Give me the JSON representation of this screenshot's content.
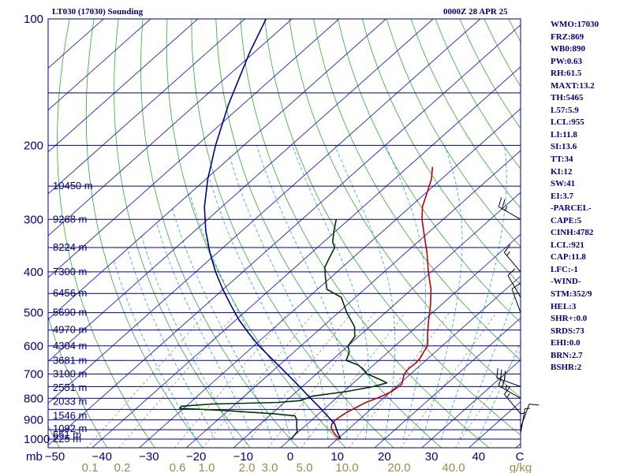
{
  "header": {
    "station": "LT030 (17030) Sounding",
    "time": "0000Z 28 APR 25"
  },
  "indices": [
    "WMO:17030",
    "FRZ:869",
    "WB0:890",
    "PW:0.63",
    "RH:61.5",
    "MAXT:13.2",
    "TH:5465",
    "L57:5.9",
    "LCL:955",
    "LI:11.8",
    "SI:13.6",
    "TT:34",
    "KI:12",
    "SW:41",
    "EI:3.7",
    "-PARCEL-",
    "CAPE:5",
    "CINH:4782",
    "LCL:921",
    "CAP:11.8",
    "LFC:-1",
    "-WIND-",
    "STM:352/9",
    "HEL:3",
    "SHR+:0.0",
    "SRDS:73",
    "EHI:0.0",
    "BRN:2.7",
    "BSHR:2"
  ],
  "chart_data": {
    "type": "skew-t log-p sounding",
    "y_axis": {
      "label": "mb",
      "scale": "log",
      "range": [
        1000,
        100
      ],
      "ticks": [
        100,
        200,
        300,
        400,
        500,
        600,
        700,
        800,
        900,
        1000
      ]
    },
    "x_axis": {
      "label": "temperature (°C)",
      "ticks": [
        -50,
        -40,
        -30,
        -20,
        -10,
        0,
        10,
        20,
        30,
        40
      ]
    },
    "mixing_ratio_axis": {
      "label": "g/kg",
      "ticks": [
        0.1,
        0.2,
        0.6,
        1.0,
        2.0,
        3.0,
        5.0,
        10.0,
        20.0,
        40.0
      ]
    },
    "height_labels": [
      {
        "p": 1000,
        "text": "225 m"
      },
      {
        "p": 977,
        "text": "651 m"
      },
      {
        "p": 945,
        "text": "1092 m"
      },
      {
        "p": 880,
        "text": "1546 m"
      },
      {
        "p": 815,
        "text": "2033 m"
      },
      {
        "p": 755,
        "text": "2551 m"
      },
      {
        "p": 700,
        "text": "3100 m"
      },
      {
        "p": 650,
        "text": "3681 m"
      },
      {
        "p": 600,
        "text": "4304 m"
      },
      {
        "p": 550,
        "text": "4970 m"
      },
      {
        "p": 500,
        "text": "5690 m"
      },
      {
        "p": 450,
        "text": "6456 m"
      },
      {
        "p": 400,
        "text": "7300 m"
      },
      {
        "p": 350,
        "text": "8224 m"
      },
      {
        "p": 300,
        "text": "9268 m"
      },
      {
        "p": 250,
        "text": "10450 m"
      }
    ],
    "series": [
      {
        "color": "#c00000",
        "points": [
          [
            1000,
            10.7
          ],
          [
            985,
            9.2
          ],
          [
            960,
            7.3
          ],
          [
            940,
            6.0
          ],
          [
            920,
            5.2
          ],
          [
            900,
            5.0
          ],
          [
            880,
            5.3
          ],
          [
            860,
            5.7
          ],
          [
            845,
            6.3
          ],
          [
            820,
            7.2
          ],
          [
            800,
            8.6
          ],
          [
            785,
            9.5
          ],
          [
            770,
            10.2
          ],
          [
            740,
            10.6
          ],
          [
            720,
            9.6
          ],
          [
            700,
            8.7
          ],
          [
            680,
            8.3
          ],
          [
            660,
            8.5
          ],
          [
            640,
            8.2
          ],
          [
            620,
            7.5
          ],
          [
            600,
            6.9
          ],
          [
            560,
            3.9
          ],
          [
            520,
            0.9
          ],
          [
            480,
            -2.2
          ],
          [
            440,
            -5.9
          ],
          [
            400,
            -10.6
          ],
          [
            360,
            -15.5
          ],
          [
            330,
            -19.8
          ],
          [
            300,
            -24.5
          ],
          [
            280,
            -27.4
          ],
          [
            260,
            -29.7
          ],
          [
            240,
            -32.2
          ],
          [
            225,
            -34.8
          ]
        ]
      },
      {
        "color": "#003300",
        "points": [
          [
            1000,
            0.2
          ],
          [
            960,
            -0.3
          ],
          [
            930,
            -1.8
          ],
          [
            900,
            -3.2
          ],
          [
            880,
            -4.6
          ],
          [
            870,
            -9.7
          ],
          [
            855,
            -20.9
          ],
          [
            845,
            -30.8
          ],
          [
            835,
            -31.0
          ],
          [
            825,
            -24.8
          ],
          [
            818,
            -11.4
          ],
          [
            810,
            -7.1
          ],
          [
            790,
            -5.5
          ],
          [
            770,
            0.7
          ],
          [
            750,
            5.1
          ],
          [
            735,
            7.1
          ],
          [
            720,
            4.6
          ],
          [
            700,
            0.8
          ],
          [
            680,
            -1.4
          ],
          [
            665,
            -3.5
          ],
          [
            650,
            -6.9
          ],
          [
            620,
            -8.3
          ],
          [
            600,
            -10.0
          ],
          [
            570,
            -10.8
          ],
          [
            540,
            -13.2
          ],
          [
            500,
            -18.2
          ],
          [
            460,
            -23.0
          ],
          [
            440,
            -28.0
          ],
          [
            410,
            -31.4
          ],
          [
            390,
            -33.7
          ],
          [
            370,
            -35.0
          ],
          [
            350,
            -36.3
          ],
          [
            340,
            -38.0
          ],
          [
            320,
            -40.4
          ],
          [
            300,
            -42.7
          ]
        ]
      },
      {
        "color": "#00008b",
        "points": [
          [
            1000,
            10.7
          ],
          [
            960,
            8.2
          ],
          [
            920,
            5.8
          ],
          [
            880,
            2.3
          ],
          [
            840,
            -1.4
          ],
          [
            800,
            -5.4
          ],
          [
            760,
            -9.5
          ],
          [
            720,
            -13.9
          ],
          [
            680,
            -18.6
          ],
          [
            640,
            -23.6
          ],
          [
            600,
            -28.9
          ],
          [
            560,
            -34.1
          ],
          [
            520,
            -39.4
          ],
          [
            480,
            -44.6
          ],
          [
            440,
            -50.1
          ],
          [
            400,
            -55.8
          ],
          [
            360,
            -61.6
          ],
          [
            320,
            -67.6
          ],
          [
            280,
            -73.7
          ],
          [
            240,
            -79.7
          ],
          [
            200,
            -86.0
          ],
          [
            160,
            -93.0
          ],
          [
            120,
            -101.0
          ],
          [
            100,
            -105.5
          ]
        ]
      }
    ],
    "wind_barbs": [
      {
        "p": 1000,
        "dir": 0,
        "kt": 5
      },
      {
        "p": 970,
        "dir": 10,
        "kt": 5
      },
      {
        "p": 940,
        "dir": 20,
        "kt": 10
      },
      {
        "p": 870,
        "dir": 320,
        "kt": 15
      },
      {
        "p": 800,
        "dir": 300,
        "kt": 25
      },
      {
        "p": 750,
        "dir": 290,
        "kt": 30
      },
      {
        "p": 500,
        "dir": 340,
        "kt": 10
      },
      {
        "p": 460,
        "dir": 330,
        "kt": 10
      },
      {
        "p": 400,
        "dir": 320,
        "kt": 15
      },
      {
        "p": 300,
        "dir": 300,
        "kt": 25
      }
    ]
  }
}
